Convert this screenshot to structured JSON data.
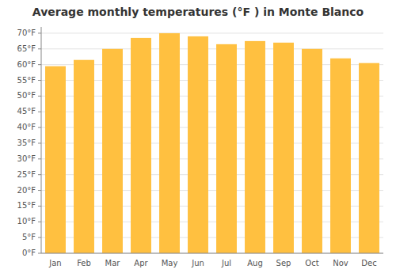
{
  "chart_data": {
    "type": "bar",
    "title": "Average monthly temperatures (°F ) in Monte Blanco",
    "categories": [
      "Jan",
      "Feb",
      "Mar",
      "Apr",
      "May",
      "Jun",
      "Jul",
      "Aug",
      "Sep",
      "Oct",
      "Nov",
      "Dec"
    ],
    "values": [
      59.5,
      61.5,
      65.0,
      68.5,
      70.0,
      69.0,
      66.5,
      67.5,
      67.0,
      65.0,
      62.0,
      60.5
    ],
    "color": "#FFC040",
    "ylim": [
      0,
      72
    ],
    "yticks": [
      {
        "value": 0,
        "label": "0°F"
      },
      {
        "value": 5,
        "label": "5°F"
      },
      {
        "value": 10,
        "label": "10°F"
      },
      {
        "value": 15,
        "label": "15°F"
      },
      {
        "value": 20,
        "label": "20°F"
      },
      {
        "value": 25,
        "label": "25°F"
      },
      {
        "value": 30,
        "label": "30°F"
      },
      {
        "value": 35,
        "label": "35°F"
      },
      {
        "value": 40,
        "label": "40°F"
      },
      {
        "value": 45,
        "label": "45°F"
      },
      {
        "value": 50,
        "label": "50°F"
      },
      {
        "value": 55,
        "label": "55°F"
      },
      {
        "value": 60,
        "label": "60°F"
      },
      {
        "value": 65,
        "label": "65°F"
      },
      {
        "value": 70,
        "label": "70°F"
      }
    ],
    "grid": true
  }
}
